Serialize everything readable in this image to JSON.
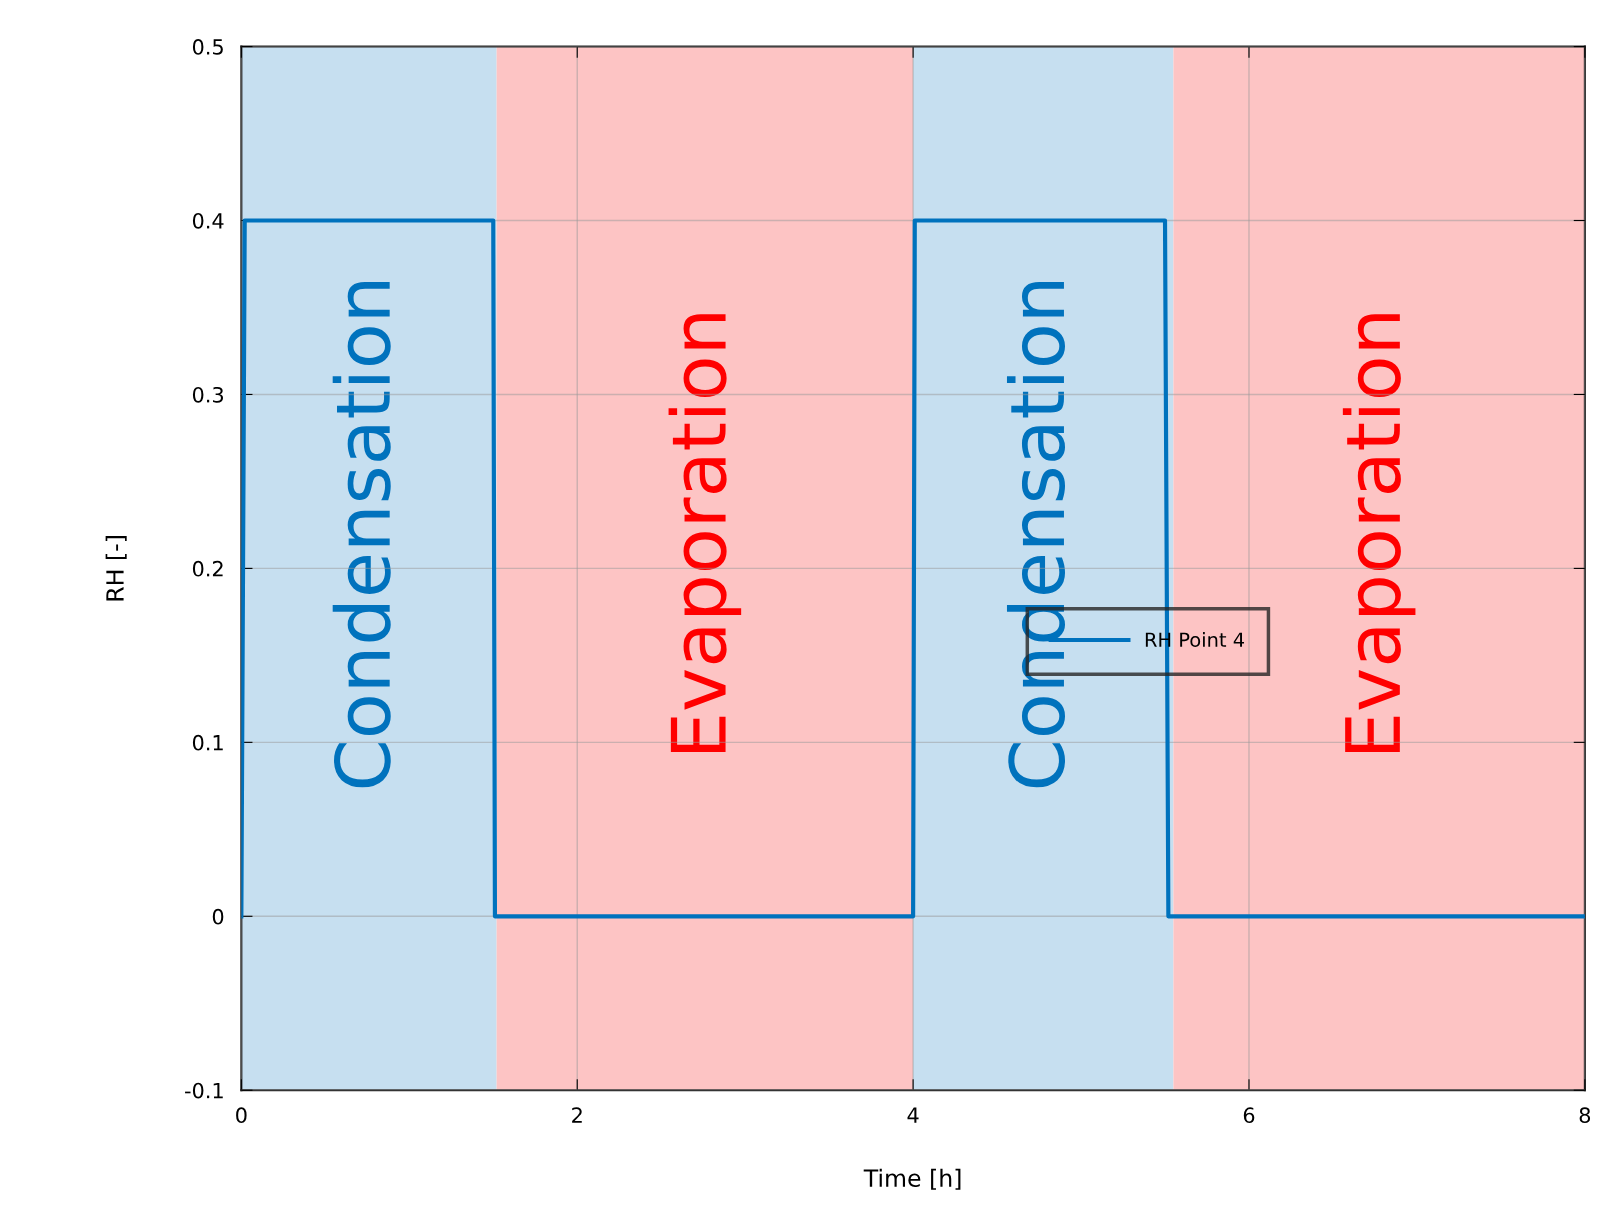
{
  "chart_data": {
    "type": "line",
    "xlabel": "Time [h]",
    "ylabel": "RH [-]",
    "x": [
      0,
      0.02,
      1.5,
      1.51,
      4.0,
      4.01,
      5.5,
      5.52,
      8.0
    ],
    "series": [
      {
        "name": "RH Point 4",
        "color": "#0072bd",
        "values": [
          0,
          0.4,
          0.4,
          0,
          0,
          0.4,
          0.4,
          0,
          0
        ]
      }
    ],
    "xlim": [
      0,
      8
    ],
    "ylim": [
      -0.1,
      0.5
    ],
    "xticks": [
      0,
      2,
      4,
      6,
      8
    ],
    "yticks": [
      -0.1,
      0,
      0.1,
      0.2,
      0.3,
      0.4,
      0.5
    ],
    "bands": [
      {
        "axis": "x",
        "from": 0,
        "to": 1.52,
        "label": "Condensation",
        "color": "#c6dff0"
      },
      {
        "axis": "x",
        "from": 1.52,
        "to": 4.0,
        "label": "Evaporation",
        "color": "#fdc4c4"
      },
      {
        "axis": "x",
        "from": 4.0,
        "to": 5.55,
        "label": "Condensation",
        "color": "#c6dff0"
      },
      {
        "axis": "x",
        "from": 5.55,
        "to": 8.0,
        "label": "Evaporation",
        "color": "#fdc4c4"
      }
    ],
    "grid": true,
    "legend": "right",
    "marker": "none",
    "line_style": "solid"
  }
}
